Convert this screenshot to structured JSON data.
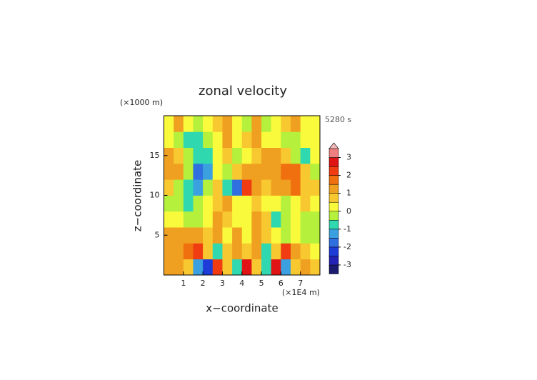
{
  "chart_data": {
    "type": "heatmap",
    "title": "zonal velocity",
    "y_unit": "(×1000 m)",
    "x_unit": "(×1E4 m)",
    "time_label": "5280 s",
    "xlabel": "x−coordinate",
    "ylabel": "z−coordinate",
    "xlim": [
      0,
      8
    ],
    "ylim": [
      0,
      20
    ],
    "xticks": [
      1,
      2,
      3,
      4,
      5,
      6,
      7
    ],
    "yticks": [
      5,
      10,
      15
    ],
    "x": [
      0.25,
      0.75,
      1.25,
      1.75,
      2.25,
      2.75,
      3.25,
      3.75,
      4.25,
      4.75,
      5.25,
      5.75,
      6.25,
      6.75,
      7.25,
      7.75
    ],
    "y": [
      1,
      3,
      5,
      7,
      9,
      11,
      13,
      15,
      17,
      19
    ],
    "z": [
      [
        1,
        1,
        0.5,
        -1.5,
        -2.5,
        2,
        0.5,
        -1,
        2.5,
        0.5,
        -1,
        2.5,
        -1.5,
        0.5,
        1,
        0.5
      ],
      [
        1,
        1,
        1.5,
        2,
        0.5,
        -1,
        0.5,
        1,
        0.5,
        1,
        -1,
        0.5,
        2,
        1,
        0.5,
        0.3
      ],
      [
        1,
        1,
        1.2,
        1,
        0.5,
        1,
        0.3,
        1,
        0.3,
        1,
        0.5,
        0.3,
        -0.5,
        0.3,
        -0.5,
        -0.3
      ],
      [
        0.3,
        0.3,
        -0.5,
        -0.5,
        0.3,
        1,
        0.5,
        0.3,
        0.3,
        1,
        0.5,
        -1,
        -0.5,
        0.3,
        -0.5,
        -0.3
      ],
      [
        -0.5,
        -0.5,
        -0.8,
        -0.5,
        0.3,
        0.5,
        1,
        0.3,
        0.3,
        0.5,
        0.3,
        0.3,
        -0.5,
        0.3,
        0.5,
        0.3
      ],
      [
        0.5,
        -0.5,
        -1,
        -1.5,
        -0.5,
        0.5,
        -1,
        -2,
        2,
        1,
        0.5,
        1,
        1,
        1.5,
        0.5,
        0.5
      ],
      [
        1,
        1,
        -0.5,
        -1.8,
        -1.5,
        0.3,
        -0.5,
        0.5,
        1,
        1,
        1,
        1.2,
        1.5,
        1.5,
        0.5,
        -0.5
      ],
      [
        1,
        0.5,
        -0.5,
        -1,
        -1,
        0.3,
        0.5,
        -0.5,
        0.3,
        0.5,
        1,
        1,
        0.5,
        -0.5,
        -1,
        0.3
      ],
      [
        0.3,
        -0.5,
        -0.8,
        -0.8,
        -0.5,
        0.3,
        1,
        0.3,
        0.5,
        1,
        0.3,
        0.3,
        -0.5,
        -0.5,
        0.3,
        0.3
      ],
      [
        0.3,
        1,
        0.3,
        -0.5,
        0.3,
        0.5,
        1,
        0.3,
        -0.5,
        1,
        -0.5,
        0.3,
        0.5,
        1,
        0.3,
        0.3
      ]
    ],
    "levels": [
      -3.5,
      -3,
      -2.5,
      -2,
      -1.5,
      -1,
      -0.5,
      0,
      0.5,
      1,
      1.5,
      2,
      2.5,
      3,
      3.5
    ],
    "colors": [
      "#1a1a6e",
      "#2222b4",
      "#1e3cd8",
      "#2f6fe0",
      "#3aa0e0",
      "#30d8b0",
      "#b4f03c",
      "#fafa3c",
      "#f8c830",
      "#f0a020",
      "#f07010",
      "#f03c10",
      "#e01414",
      "#f08080"
    ],
    "overflow_color": "#f4b8b8",
    "colorbar_ticks": [
      3,
      2,
      1,
      0,
      -1,
      -2,
      -3
    ]
  }
}
